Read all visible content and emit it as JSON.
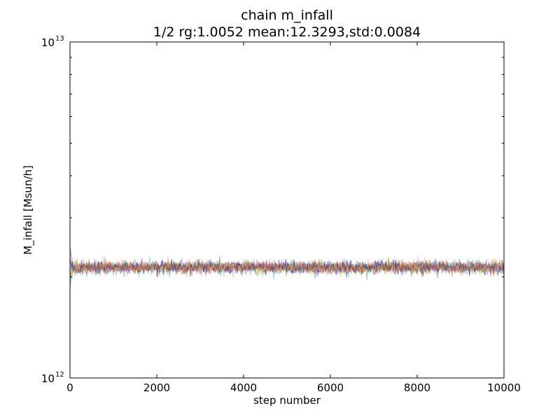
{
  "chart_data": {
    "type": "line",
    "title": "chain m_infall",
    "subtitle": "1/2 rg:1.0052 mean:12.3293,std:0.0084",
    "xlabel": "step number",
    "ylabel": "M_infall [Msun/h]",
    "xlim": [
      0,
      10000
    ],
    "ylim": [
      1000000000000.0,
      10000000000000.0
    ],
    "yscale": "log",
    "x_ticks": [
      0,
      2000,
      4000,
      6000,
      8000,
      10000
    ],
    "y_ticks": [
      {
        "base": "10",
        "exp": "12",
        "value": 1000000000000.0
      },
      {
        "base": "10",
        "exp": "13",
        "value": 10000000000000.0
      }
    ],
    "grid": false,
    "trace": {
      "walkers": 10,
      "steps": 10000,
      "mean_log10": 12.3293,
      "std_log10": 0.0084,
      "alpha": 0.45,
      "colors": [
        "#1f77b4",
        "#2ca02c",
        "#d62728",
        "#17becf",
        "#9467bd",
        "#bcbd22",
        "#e377c2",
        "#8c564b",
        "#000080",
        "#ff7f0e"
      ]
    }
  }
}
